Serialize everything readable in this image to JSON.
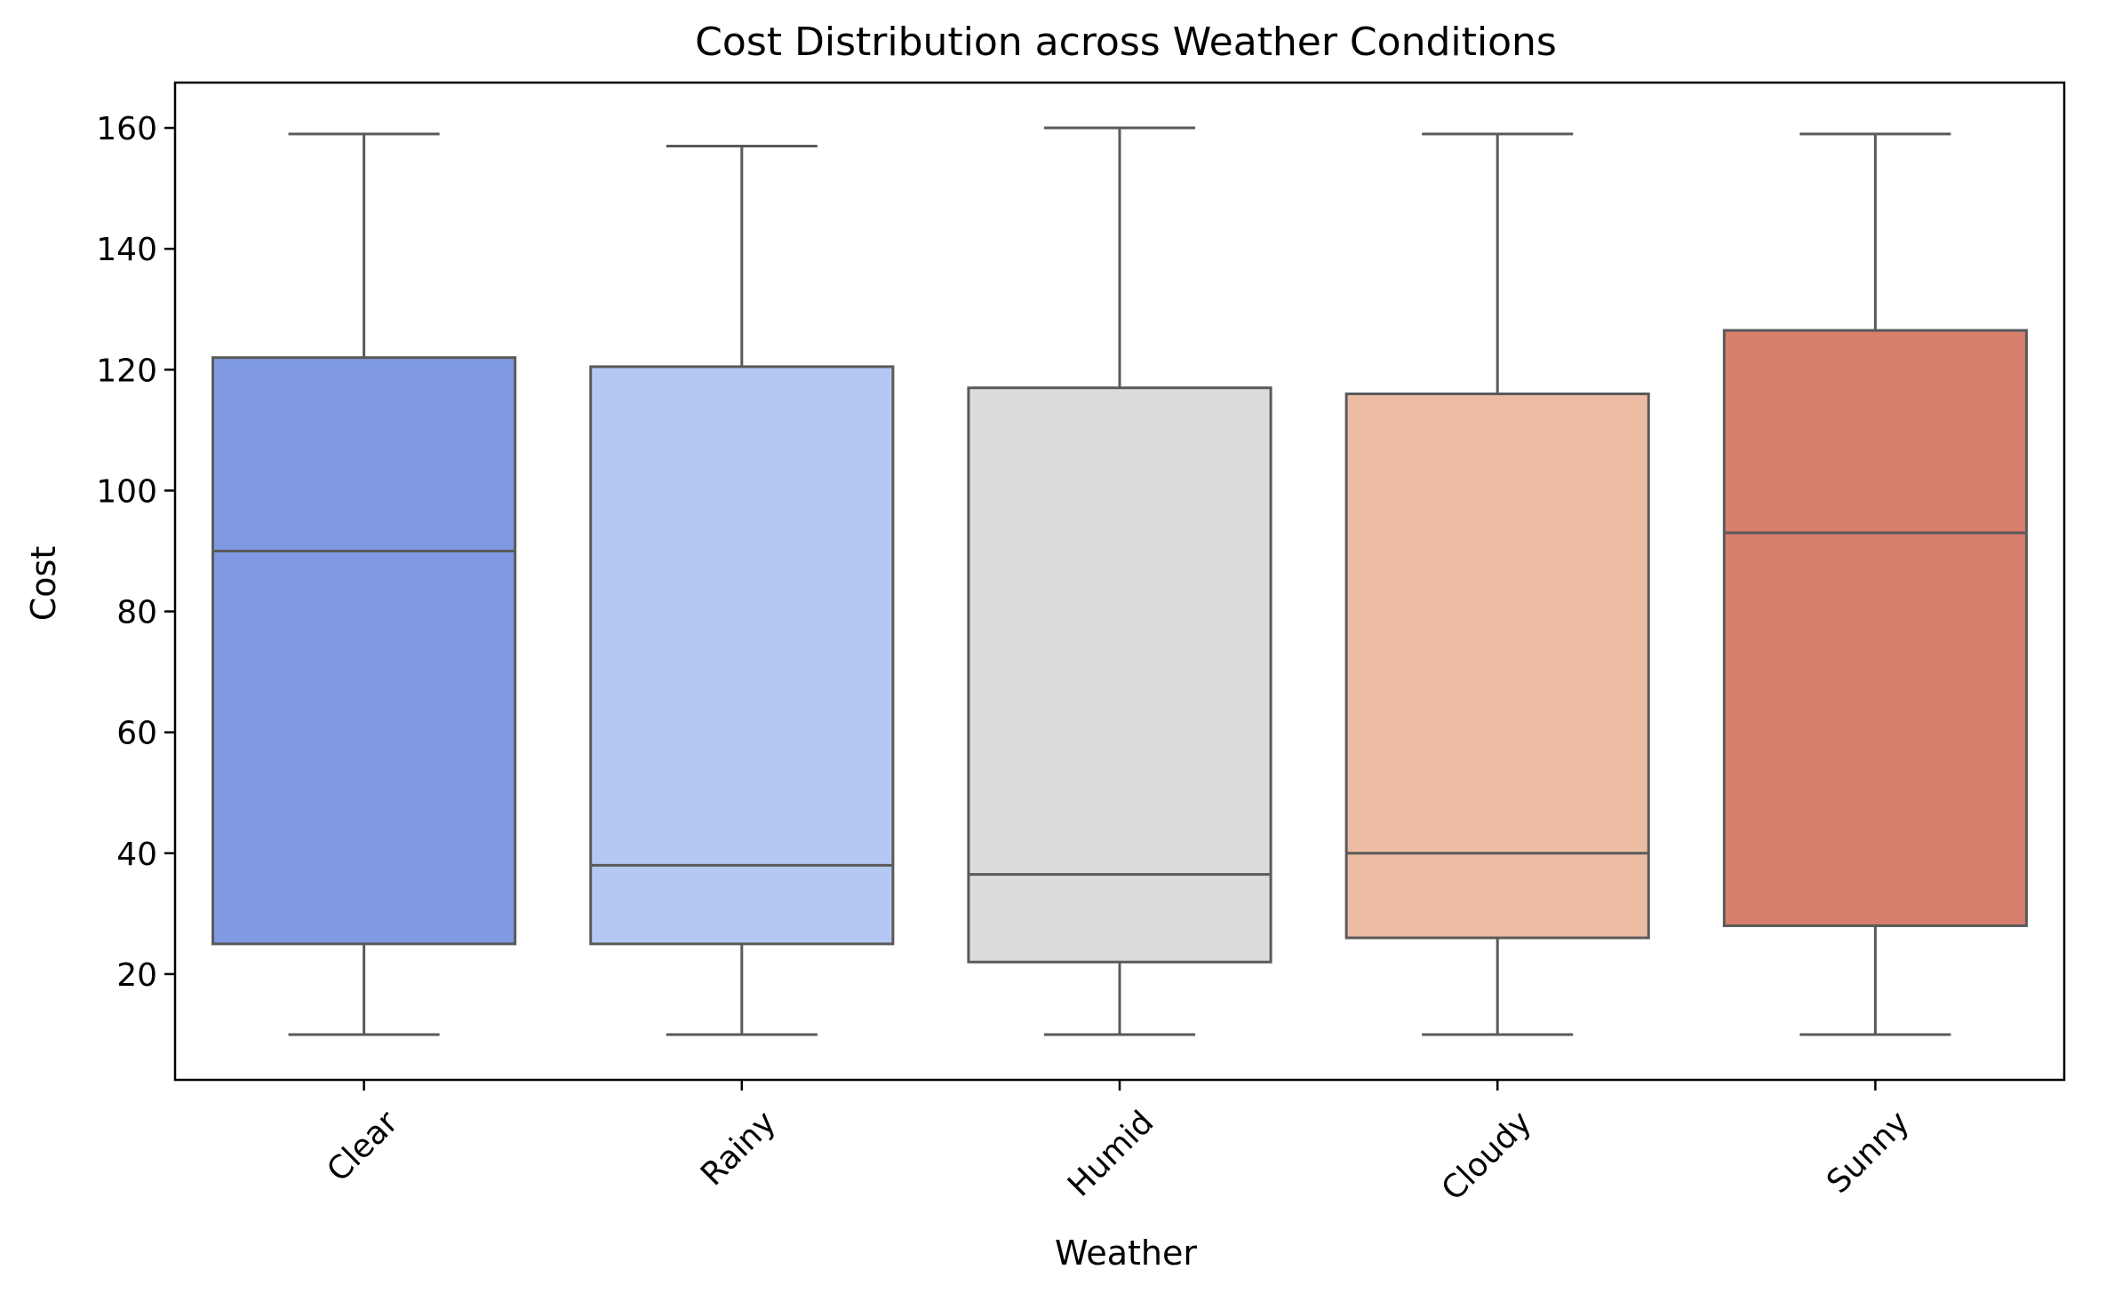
{
  "chart_data": {
    "type": "box",
    "title": "Cost Distribution across Weather Conditions",
    "xlabel": "Weather",
    "ylabel": "Cost",
    "ylim": [
      2.5,
      167.5
    ],
    "yticks": [
      20,
      40,
      60,
      80,
      100,
      120,
      140,
      160
    ],
    "grid": false,
    "legend": "none",
    "categories": [
      "Clear",
      "Rainy",
      "Humid",
      "Cloudy",
      "Sunny"
    ],
    "boxes": [
      {
        "category": "Clear",
        "whisker_low": 10,
        "q1": 25.0,
        "median": 90.0,
        "q3": 122.0,
        "whisker_high": 159,
        "color": "#7f99e2"
      },
      {
        "category": "Rainy",
        "whisker_low": 10,
        "q1": 25.0,
        "median": 38.0,
        "q3": 120.5,
        "whisker_high": 157,
        "color": "#b5c8f3"
      },
      {
        "category": "Humid",
        "whisker_low": 10,
        "q1": 22.0,
        "median": 36.5,
        "q3": 117.0,
        "whisker_high": 160,
        "color": "#dcdcdc"
      },
      {
        "category": "Cloudy",
        "whisker_low": 10,
        "q1": 26.0,
        "median": 40.0,
        "q3": 116.0,
        "whisker_high": 159,
        "color": "#ecbca5"
      },
      {
        "category": "Sunny",
        "whisker_low": 10,
        "q1": 28.0,
        "median": 93.0,
        "q3": 126.5,
        "whisker_high": 159,
        "color": "#d77f6c"
      }
    ],
    "line_color": "#5a5a5a"
  }
}
